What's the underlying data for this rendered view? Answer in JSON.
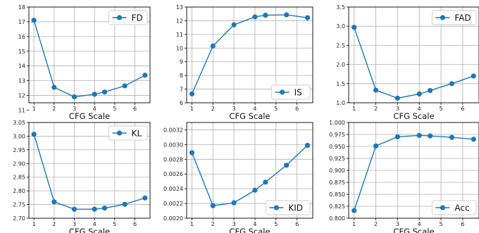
{
  "chart_data": [
    {
      "type": "line",
      "xlabel": "CFG Scale",
      "x": [
        1,
        2,
        3,
        4,
        4.5,
        5.5,
        6.5
      ],
      "series": [
        {
          "name": "FD",
          "values": [
            17.1,
            12.55,
            11.9,
            12.08,
            12.23,
            12.65,
            13.37
          ],
          "color": "#1f77b4"
        }
      ],
      "xticks": [
        1,
        2,
        3,
        4,
        5,
        6
      ],
      "yticks": [
        11,
        12,
        13,
        14,
        15,
        16,
        17,
        18
      ],
      "ytick_labels": [
        "11",
        "12",
        "13",
        "14",
        "15",
        "16",
        "17",
        "18"
      ],
      "xlim": [
        0.75,
        6.75
      ],
      "ylim": [
        11.5,
        18
      ],
      "legend": "top-right",
      "grid": true
    },
    {
      "type": "line",
      "xlabel": "CFG Scale",
      "x": [
        1,
        2,
        3,
        4,
        4.5,
        5.5,
        6.5
      ],
      "series": [
        {
          "name": "IS",
          "values": [
            6.65,
            10.15,
            11.7,
            12.28,
            12.4,
            12.43,
            12.22
          ],
          "color": "#1f77b4"
        }
      ],
      "xticks": [
        1,
        2,
        3,
        4,
        5,
        6
      ],
      "yticks": [
        6,
        7,
        8,
        9,
        10,
        11,
        12,
        13
      ],
      "ytick_labels": [
        "6",
        "7",
        "8",
        "9",
        "10",
        "11",
        "12",
        "13"
      ],
      "xlim": [
        0.75,
        6.75
      ],
      "ylim": [
        6,
        13
      ],
      "legend": "bottom-right",
      "grid": true
    },
    {
      "type": "line",
      "xlabel": "CFG Scale",
      "x": [
        1,
        2,
        3,
        4,
        4.5,
        5.5,
        6.5
      ],
      "series": [
        {
          "name": "FAD",
          "values": [
            2.97,
            1.33,
            1.12,
            1.23,
            1.32,
            1.5,
            1.7
          ],
          "color": "#1f77b4"
        }
      ],
      "xticks": [
        1,
        2,
        3,
        4,
        5,
        6
      ],
      "yticks": [
        1.0,
        1.5,
        2.0,
        2.5,
        3.0,
        3.5
      ],
      "ytick_labels": [
        "1.0",
        "1.5",
        "2.0",
        "2.5",
        "3.0",
        "3.5"
      ],
      "xlim": [
        0.75,
        6.75
      ],
      "ylim": [
        1.0,
        3.5
      ],
      "legend": "top-right",
      "grid": true
    },
    {
      "type": "line",
      "xlabel": "CFG Scale",
      "x": [
        1,
        2,
        3,
        4,
        4.5,
        5.5,
        6.5
      ],
      "series": [
        {
          "name": "KL",
          "values": [
            3.007,
            2.76,
            2.733,
            2.733,
            2.737,
            2.751,
            2.774
          ],
          "color": "#1f77b4"
        }
      ],
      "xticks": [
        1,
        2,
        3,
        4,
        5,
        6
      ],
      "yticks": [
        2.7,
        2.75,
        2.8,
        2.85,
        2.9,
        2.95,
        3.0,
        3.05
      ],
      "ytick_labels": [
        "2.70",
        "2.75",
        "2.80",
        "2.85",
        "2.90",
        "2.95",
        "3.00",
        "3.05"
      ],
      "xlim": [
        0.75,
        6.75
      ],
      "ylim": [
        2.7,
        3.05
      ],
      "legend": "top-right",
      "grid": true
    },
    {
      "type": "line",
      "xlabel": "CFG Scale",
      "x": [
        1,
        2,
        3,
        4,
        4.5,
        5.5,
        6.5
      ],
      "series": [
        {
          "name": "KID",
          "values": [
            0.00289,
            0.00217,
            0.00221,
            0.00238,
            0.00249,
            0.00272,
            0.00299
          ],
          "color": "#1f77b4"
        }
      ],
      "xticks": [
        1,
        2,
        3,
        4,
        5,
        6
      ],
      "yticks": [
        0.002,
        0.0022,
        0.0024,
        0.0026,
        0.0028,
        0.003,
        0.0032
      ],
      "ytick_labels": [
        "0.0020",
        "0.0022",
        "0.0024",
        "0.0026",
        "0.0028",
        "0.0030",
        "0.0032"
      ],
      "xlim": [
        0.75,
        6.75
      ],
      "ylim": [
        0.002,
        0.0033
      ],
      "legend": "bottom-right",
      "grid": true
    },
    {
      "type": "line",
      "xlabel": "CFG Scale",
      "x": [
        1,
        2,
        3,
        4,
        4.5,
        5.5,
        6.5
      ],
      "series": [
        {
          "name": "Acc",
          "values": [
            0.816,
            0.951,
            0.97,
            0.973,
            0.972,
            0.969,
            0.965
          ],
          "color": "#1f77b4"
        }
      ],
      "xticks": [
        1,
        2,
        3,
        4,
        5,
        6
      ],
      "yticks": [
        0.8,
        0.825,
        0.85,
        0.875,
        0.9,
        0.925,
        0.95,
        0.975,
        1.0
      ],
      "ytick_labels": [
        "0.800",
        "0.825",
        "0.850",
        "0.875",
        "0.900",
        "0.925",
        "0.950",
        "0.975",
        "1.000"
      ],
      "xlim": [
        0.75,
        6.75
      ],
      "ylim": [
        0.8,
        1.0
      ],
      "legend": "bottom-right",
      "grid": true
    }
  ]
}
